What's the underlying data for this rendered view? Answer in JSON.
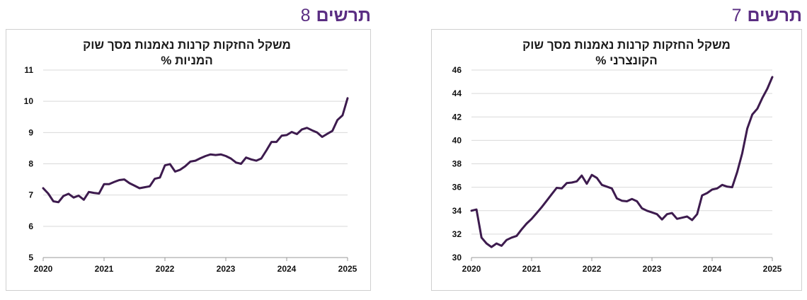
{
  "charts": [
    {
      "heading_word": "תרשים",
      "heading_number": "8",
      "chart_data": {
        "type": "line",
        "title": [
          "משקל החזקות קרנות נאמנות מסך שוק",
          "המניות %"
        ],
        "xlabel": "",
        "ylabel": "",
        "xlim": [
          2020,
          2025
        ],
        "ylim": [
          5,
          11
        ],
        "yticks": [
          5,
          6,
          7,
          8,
          9,
          10,
          11
        ],
        "xticks": [
          2020,
          2021,
          2022,
          2023,
          2024,
          2025
        ],
        "grid": true,
        "legend": "none",
        "line_color": "#3d1b4e",
        "series": [
          {
            "x": [
              2020.0,
              2020.083,
              2020.167,
              2020.25,
              2020.333,
              2020.417,
              2020.5,
              2020.583,
              2020.667,
              2020.75,
              2020.833,
              2020.917,
              2021.0,
              2021.083,
              2021.167,
              2021.25,
              2021.333,
              2021.417,
              2021.5,
              2021.583,
              2021.667,
              2021.75,
              2021.833,
              2021.917,
              2022.0,
              2022.083,
              2022.167,
              2022.25,
              2022.333,
              2022.417,
              2022.5,
              2022.583,
              2022.667,
              2022.75,
              2022.833,
              2022.917,
              2023.0,
              2023.083,
              2023.167,
              2023.25,
              2023.333,
              2023.417,
              2023.5,
              2023.583,
              2023.667,
              2023.75,
              2023.833,
              2023.917,
              2024.0,
              2024.083,
              2024.167,
              2024.25,
              2024.333,
              2024.417,
              2024.5,
              2024.583,
              2024.667,
              2024.75,
              2024.833,
              2024.917,
              2025.0
            ],
            "values": [
              7.22,
              7.05,
              6.8,
              6.77,
              6.97,
              7.04,
              6.92,
              6.98,
              6.85,
              7.1,
              7.07,
              7.05,
              7.35,
              7.35,
              7.42,
              7.48,
              7.5,
              7.38,
              7.3,
              7.22,
              7.25,
              7.28,
              7.52,
              7.56,
              7.95,
              7.99,
              7.75,
              7.81,
              7.92,
              8.07,
              8.1,
              8.18,
              8.25,
              8.3,
              8.28,
              8.3,
              8.25,
              8.17,
              8.04,
              8.0,
              8.2,
              8.14,
              8.1,
              8.17,
              8.43,
              8.7,
              8.7,
              8.9,
              8.92,
              9.02,
              8.95,
              9.1,
              9.15,
              9.07,
              9.0,
              8.86,
              8.96,
              9.05,
              9.4,
              9.55,
              10.1
            ]
          }
        ]
      }
    },
    {
      "heading_word": "תרשים",
      "heading_number": "7",
      "chart_data": {
        "type": "line",
        "title": [
          "משקל החזקות קרנות נאמנות מסך שוק",
          "הקונצרני %"
        ],
        "xlabel": "",
        "ylabel": "",
        "xlim": [
          2020,
          2025
        ],
        "ylim": [
          30,
          46
        ],
        "yticks": [
          30,
          32,
          34,
          36,
          38,
          40,
          42,
          44,
          46
        ],
        "xticks": [
          2020,
          2021,
          2022,
          2023,
          2024,
          2025
        ],
        "grid": true,
        "legend": "none",
        "line_color": "#3d1b4e",
        "series": [
          {
            "x": [
              2020.0,
              2020.083,
              2020.167,
              2020.25,
              2020.333,
              2020.417,
              2020.5,
              2020.583,
              2020.667,
              2020.75,
              2020.833,
              2020.917,
              2021.0,
              2021.083,
              2021.167,
              2021.25,
              2021.333,
              2021.417,
              2021.5,
              2021.583,
              2021.667,
              2021.75,
              2021.833,
              2021.917,
              2022.0,
              2022.083,
              2022.167,
              2022.25,
              2022.333,
              2022.417,
              2022.5,
              2022.583,
              2022.667,
              2022.75,
              2022.833,
              2022.917,
              2023.0,
              2023.083,
              2023.167,
              2023.25,
              2023.333,
              2023.417,
              2023.5,
              2023.583,
              2023.667,
              2023.75,
              2023.833,
              2023.917,
              2024.0,
              2024.083,
              2024.167,
              2024.25,
              2024.333,
              2024.417,
              2024.5,
              2024.583,
              2024.667,
              2024.75,
              2024.833,
              2024.917,
              2025.0
            ],
            "values": [
              34.0,
              34.1,
              31.7,
              31.2,
              30.9,
              31.2,
              31.0,
              31.5,
              31.7,
              31.85,
              32.4,
              32.9,
              33.3,
              33.8,
              34.3,
              34.85,
              35.4,
              35.95,
              35.9,
              36.35,
              36.4,
              36.5,
              37.0,
              36.3,
              37.05,
              36.8,
              36.2,
              36.05,
              35.9,
              35.05,
              34.85,
              34.8,
              35.0,
              34.8,
              34.2,
              34.0,
              33.85,
              33.7,
              33.25,
              33.7,
              33.8,
              33.3,
              33.4,
              33.5,
              33.2,
              33.7,
              35.3,
              35.5,
              35.8,
              35.9,
              36.2,
              36.05,
              36.0,
              37.3,
              38.9,
              41.0,
              42.2,
              42.7,
              43.6,
              44.4,
              45.4
            ]
          }
        ]
      }
    }
  ]
}
